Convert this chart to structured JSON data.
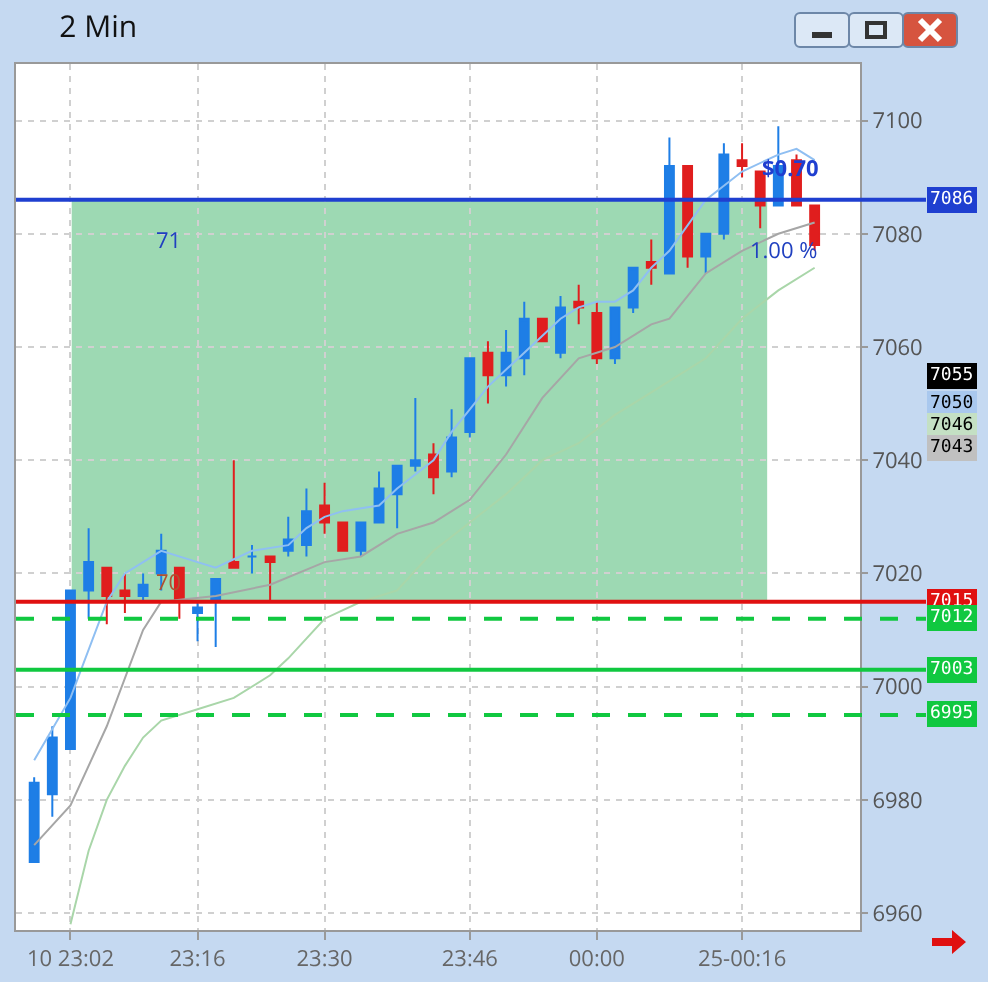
{
  "chart_data": {
    "type": "candlestick",
    "title": "2 Min",
    "xlim": [
      22.9333,
      24.4833
    ],
    "ylim": [
      6957,
      7110
    ],
    "xticks": [
      {
        "value": 23.0333,
        "label": "10 23:02"
      },
      {
        "value": 23.2667,
        "label": "23:16"
      },
      {
        "value": 23.5,
        "label": "23:30"
      },
      {
        "value": 23.7667,
        "label": "23:46"
      },
      {
        "value": 24.0,
        "label": "00:00"
      },
      {
        "value": 24.2667,
        "label": "25-00:16"
      }
    ],
    "yticks": [
      6960,
      6980,
      7000,
      7020,
      7040,
      7060,
      7080,
      7100
    ],
    "grid": true,
    "series": [
      {
        "type": "line",
        "color": "#8fbff2",
        "x": [
          22.9667,
          23.0333,
          23.1,
          23.1333,
          23.1667,
          23.2,
          23.2667,
          23.3,
          23.3667,
          23.4333,
          23.4667,
          23.5,
          23.5333,
          23.6,
          23.6333,
          23.7,
          23.7333,
          23.7667,
          23.8,
          23.8667,
          23.9333,
          23.9667,
          24.0,
          24.0333,
          24.0667,
          24.1,
          24.1333,
          24.2,
          24.2667,
          24.3333,
          24.3667,
          24.4
        ],
        "values": [
          6987,
          6998,
          7015,
          7020,
          7022,
          7024,
          7022,
          7021,
          7024,
          7025,
          7028,
          7030,
          7031,
          7032,
          7035,
          7040,
          7045,
          7049,
          7053,
          7059,
          7065,
          7067,
          7068,
          7068,
          7070,
          7074,
          7077,
          7086,
          7091,
          7094,
          7095,
          7093
        ]
      },
      {
        "type": "line",
        "color": "#a6a6a6",
        "x": [
          22.9667,
          23.0333,
          23.1,
          23.1667,
          23.2,
          23.3,
          23.4,
          23.5,
          23.5667,
          23.6333,
          23.7,
          23.7667,
          23.8333,
          23.9,
          23.9667,
          24.0333,
          24.1,
          24.1333,
          24.2,
          24.2667,
          24.3333,
          24.4
        ],
        "values": [
          6972,
          6979,
          6993,
          7010,
          7015,
          7016,
          7018,
          7022,
          7023,
          7027,
          7029,
          7033,
          7041,
          7051,
          7058,
          7060,
          7064,
          7065,
          7073,
          7077,
          7080,
          7082
        ]
      },
      {
        "type": "line",
        "color": "#a9d6a9",
        "x": [
          23.0333,
          23.0667,
          23.1,
          23.1333,
          23.1667,
          23.2,
          23.2667,
          23.3333,
          23.4,
          23.4333,
          23.5,
          23.5667,
          23.6333,
          23.7,
          23.7667,
          23.8333,
          23.9,
          23.9667,
          24.0333,
          24.1,
          24.2,
          24.2667,
          24.3333,
          24.4
        ],
        "values": [
          6958,
          6971,
          6980,
          6986,
          6991,
          6994,
          6996,
          6998,
          7002,
          7005,
          7012,
          7015,
          7017,
          7024,
          7029,
          7034,
          7040,
          7043,
          7048,
          7052,
          7058,
          7065,
          7070,
          7074
        ]
      },
      {
        "type": "candlestick",
        "color": "#1e7ee6",
        "x": [
          22.9667,
          23.0,
          23.0333,
          23.0667,
          23.1667,
          23.2,
          23.2667,
          23.3,
          23.3667,
          23.4333,
          23.4667,
          23.5667,
          23.6,
          23.6333,
          23.6667,
          23.7333,
          23.7667,
          23.8333,
          23.8667,
          23.9333,
          24.0333,
          24.0667,
          24.1333,
          24.2,
          24.2333,
          24.3333
        ],
        "ohlc": [
          [
            6969,
            6984,
            6969,
            6983
          ],
          [
            6981,
            6993,
            6977,
            6991
          ],
          [
            6989,
            7017,
            6989,
            7017
          ],
          [
            7017,
            7028,
            7012,
            7022
          ],
          [
            7016,
            7020,
            7015,
            7018
          ],
          [
            7020,
            7027,
            7017,
            7024
          ],
          [
            7013,
            7015,
            7008,
            7014
          ],
          [
            7015,
            7019,
            7007,
            7019
          ],
          [
            7023,
            7025,
            7020,
            7023
          ],
          [
            7024,
            7030,
            7023,
            7026
          ],
          [
            7025,
            7035,
            7023,
            7031
          ],
          [
            7024,
            7029,
            7023,
            7029
          ],
          [
            7029,
            7038,
            7029,
            7035
          ],
          [
            7034,
            7039,
            7028,
            7039
          ],
          [
            7039,
            7051,
            7038,
            7040
          ],
          [
            7038,
            7049,
            7037,
            7044
          ],
          [
            7045,
            7058,
            7044,
            7058
          ],
          [
            7055,
            7063,
            7053,
            7059
          ],
          [
            7058,
            7068,
            7055,
            7065
          ],
          [
            7059,
            7069,
            7058,
            7067
          ],
          [
            7058,
            7067,
            7057,
            7067
          ],
          [
            7067,
            7074,
            7066,
            7074
          ],
          [
            7073,
            7097,
            7073,
            7092
          ],
          [
            7076,
            7080,
            7073,
            7080
          ],
          [
            7080,
            7096,
            7079,
            7094
          ],
          [
            7085,
            7099,
            7085,
            7092
          ]
        ]
      },
      {
        "type": "candlestick",
        "color": "#e01e1e",
        "x": [
          23.1,
          23.1333,
          23.2333,
          23.3333,
          23.4,
          23.5,
          23.5333,
          23.7,
          23.8,
          23.9,
          23.9667,
          24.0,
          24.1,
          24.1667,
          24.2667,
          24.3,
          24.3667,
          24.4
        ],
        "ohlc": [
          [
            7021,
            7021,
            7011,
            7016
          ],
          [
            7017,
            7020,
            7013,
            7016
          ],
          [
            7021,
            7021,
            7012,
            7015
          ],
          [
            7022,
            7040,
            7021,
            7021
          ],
          [
            7023,
            7023,
            7015,
            7022
          ],
          [
            7032,
            7036,
            7027,
            7029
          ],
          [
            7029,
            7029,
            7024,
            7024
          ],
          [
            7041,
            7043,
            7034,
            7037
          ],
          [
            7059,
            7061,
            7050,
            7055
          ],
          [
            7065,
            7065,
            7061,
            7061
          ],
          [
            7068,
            7071,
            7064,
            7067
          ],
          [
            7066,
            7068,
            7057,
            7058
          ],
          [
            7075,
            7079,
            7071,
            7074
          ],
          [
            7092,
            7092,
            7074,
            7076
          ],
          [
            7093,
            7096,
            7090,
            7092
          ],
          [
            7091,
            7091,
            7081,
            7085
          ],
          [
            7093,
            7094,
            7085,
            7085
          ],
          [
            7085,
            7085,
            7077,
            7078
          ]
        ]
      }
    ],
    "bands": [
      {
        "axis": "y",
        "from": 7015,
        "to": 7086,
        "color": "#5cbf80"
      }
    ],
    "ref_lines": [
      {
        "axis": "y",
        "value": 7086,
        "label": "7086",
        "color": "#1f3fd0",
        "line_style": "solid"
      },
      {
        "axis": "y",
        "value": 7015,
        "label": "7015",
        "color": "#e01010",
        "line_style": "solid"
      },
      {
        "axis": "y",
        "value": 7012,
        "label": "7012",
        "color": "#10c840",
        "line_style": "dashed"
      },
      {
        "axis": "y",
        "value": 7003,
        "label": "7003",
        "color": "#10c840",
        "line_style": "solid"
      },
      {
        "axis": "y",
        "value": 6995,
        "label": "6995",
        "color": "#10c840",
        "line_style": "dashed"
      }
    ],
    "annotations": [
      "71",
      "70",
      "$0.70",
      "1.00 %",
      "7055",
      "7050",
      "7046",
      "7043"
    ]
  }
}
